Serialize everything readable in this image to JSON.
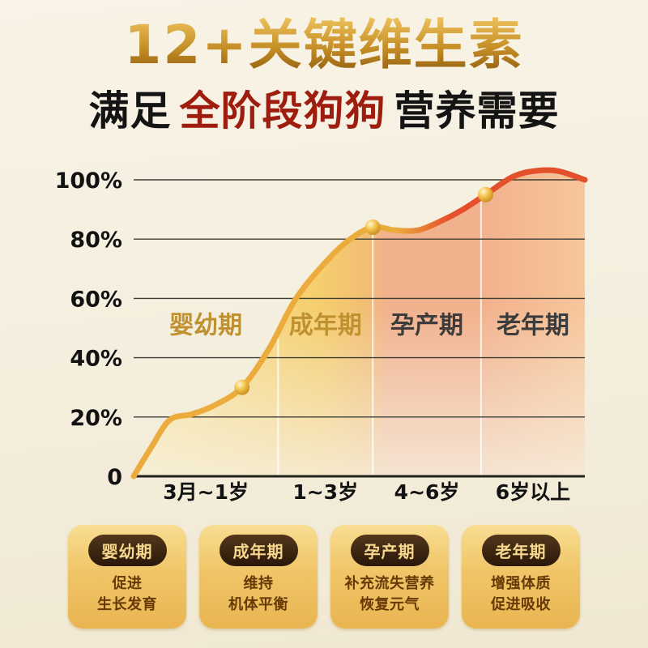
{
  "header": {
    "title": "12+关键维生素",
    "subtitle_prefix": "满足",
    "subtitle_highlight": "全阶段狗狗",
    "subtitle_suffix": "营养需要"
  },
  "chart_data": {
    "type": "area",
    "x_categories": [
      "3月~1岁",
      "1~3岁",
      "4~6岁",
      "6岁以上"
    ],
    "y_ticks": [
      [
        100,
        "100%"
      ],
      [
        80,
        "80%"
      ],
      [
        60,
        "60%"
      ],
      [
        40,
        "40%"
      ],
      [
        20,
        "20%"
      ],
      [
        0,
        "0"
      ]
    ],
    "ylim": [
      0,
      105
    ],
    "region_boundaries": [
      0,
      0.32,
      0.53,
      0.77,
      1
    ],
    "stage_labels": [
      {
        "label": "婴幼期",
        "color": "#bf9130"
      },
      {
        "label": "成年期",
        "color": "#bf9130"
      },
      {
        "label": "孕产期",
        "color": "#3c3c3c"
      },
      {
        "label": "老年期",
        "color": "#3c3c3c"
      }
    ],
    "curve_percent_points": [
      [
        0,
        0
      ],
      [
        4,
        10
      ],
      [
        8,
        19
      ],
      [
        13,
        21
      ],
      [
        18,
        24
      ],
      [
        24,
        30
      ],
      [
        30,
        43
      ],
      [
        36,
        60
      ],
      [
        43,
        73
      ],
      [
        48,
        80
      ],
      [
        53,
        84
      ],
      [
        58,
        83
      ],
      [
        63,
        83
      ],
      [
        68,
        86
      ],
      [
        73,
        90
      ],
      [
        78,
        95
      ],
      [
        84,
        101
      ],
      [
        89,
        103
      ],
      [
        94,
        103
      ],
      [
        100,
        100
      ]
    ],
    "markers": [
      [
        24,
        30
      ],
      [
        53,
        84
      ],
      [
        78,
        95
      ]
    ],
    "colors": {
      "curve_gold": "#ecac3d",
      "curve_red": "#e4502b",
      "area_yellow": "#f5cd6c",
      "area_pink": "#f2b18d",
      "marker_gold": "#f4c44f",
      "grid": "#3f3e36",
      "axis_text": "#121212"
    },
    "legend_position": "none",
    "grid": true
  },
  "cards": [
    {
      "label": "婴幼期",
      "line1": "促进",
      "line2": "生长发育"
    },
    {
      "label": "成年期",
      "line1": "维持",
      "line2": "机体平衡"
    },
    {
      "label": "孕产期",
      "line1": "补充流失营养",
      "line2": "恢复元气"
    },
    {
      "label": "老年期",
      "line1": "增强体质",
      "line2": "促进吸收"
    }
  ]
}
